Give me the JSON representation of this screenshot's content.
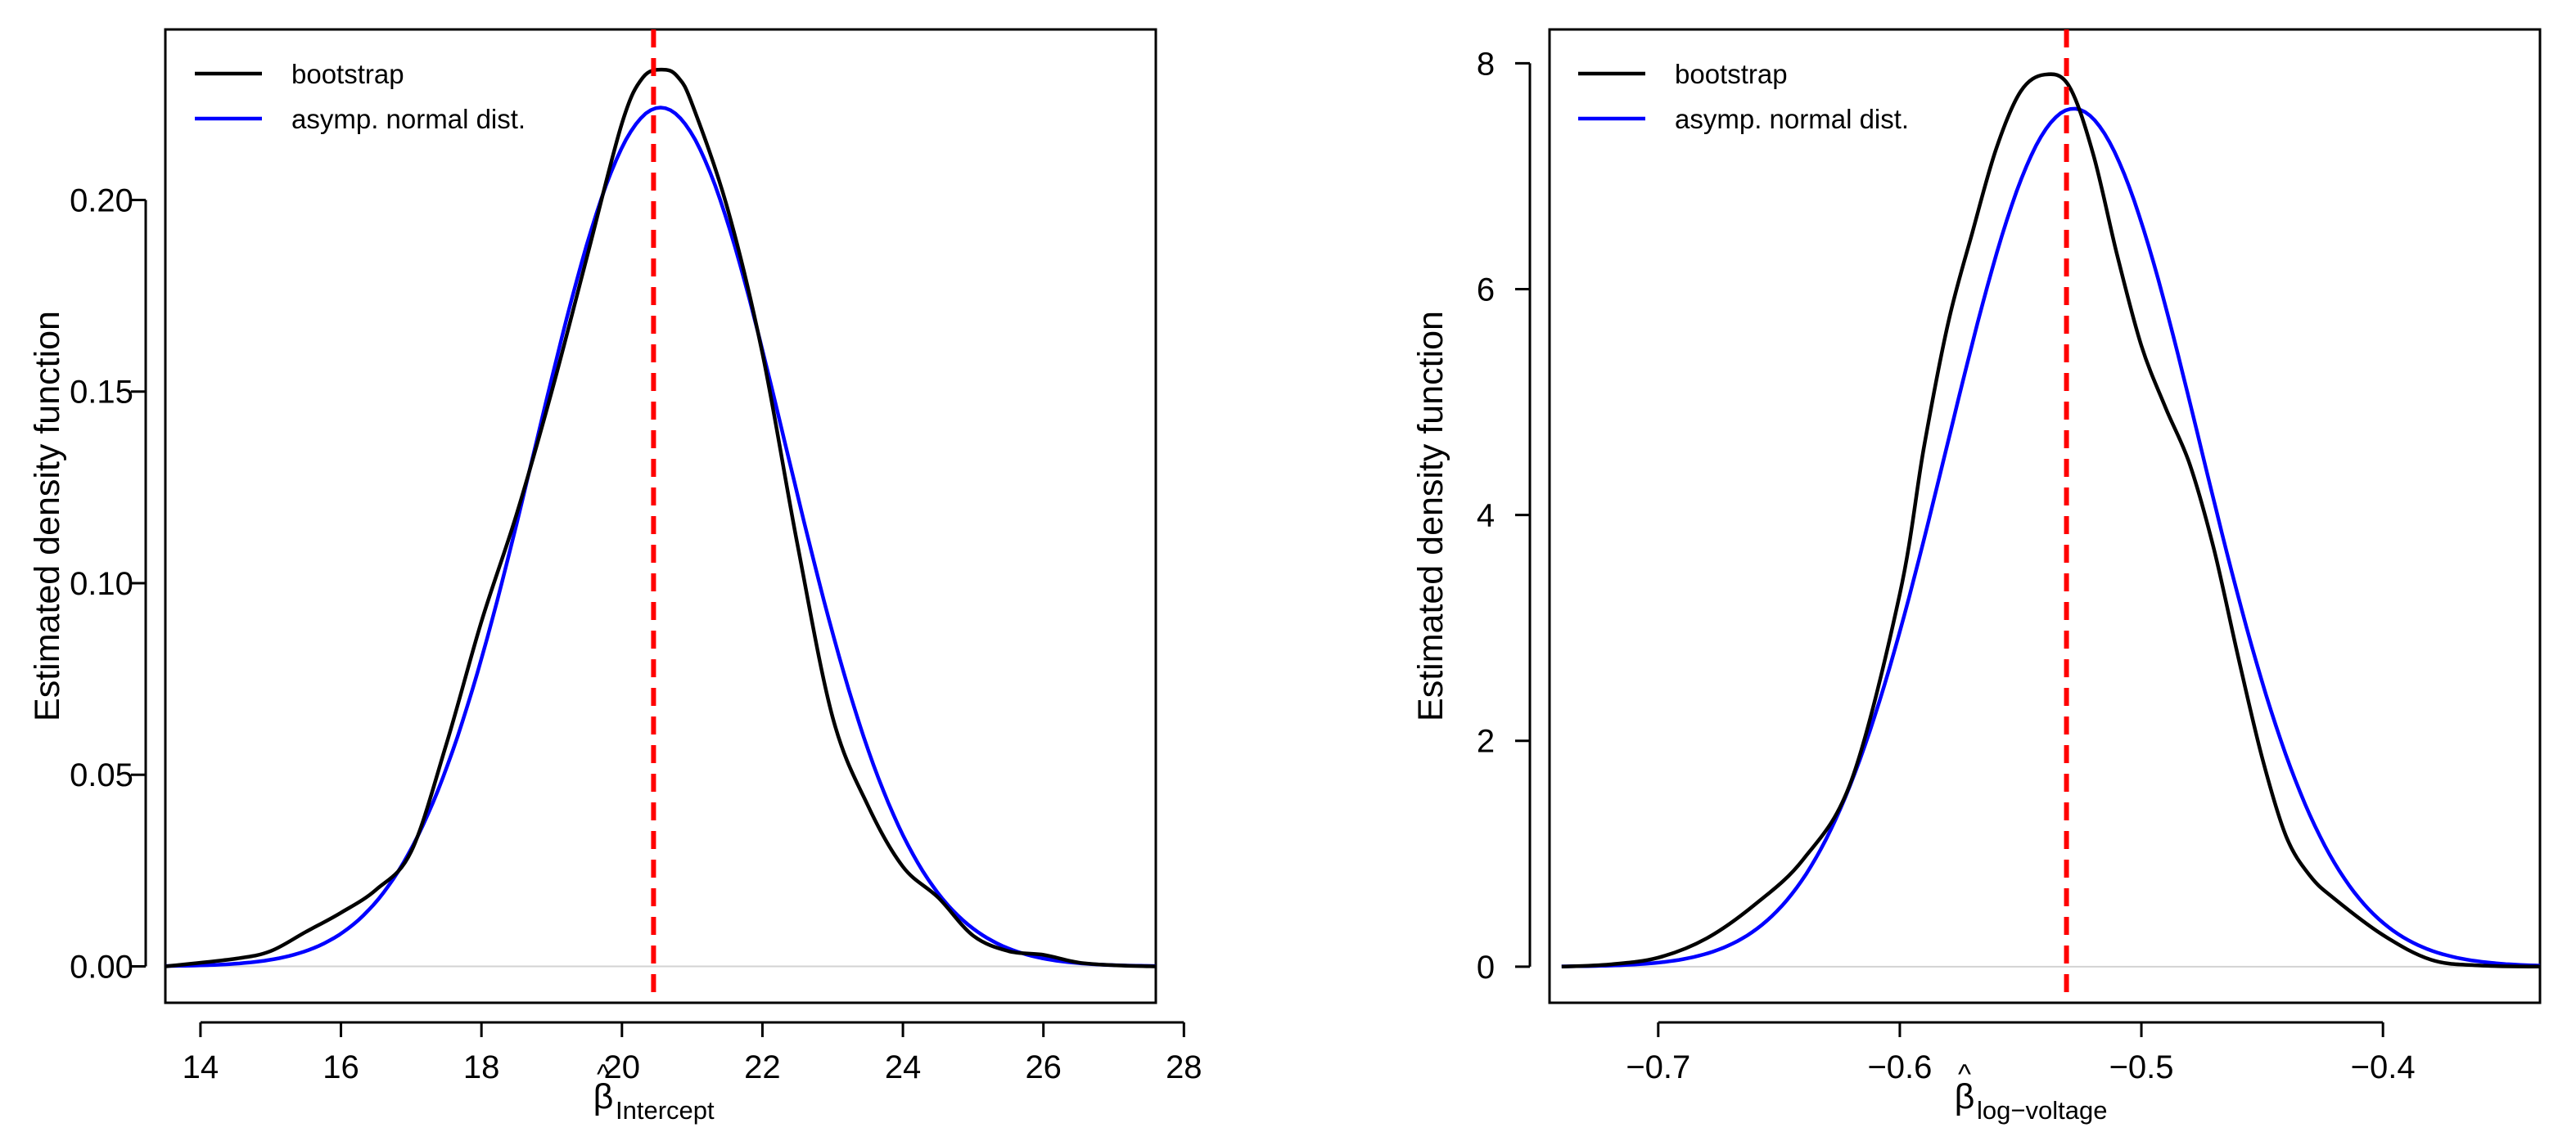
{
  "colors": {
    "bootstrap": "#000000",
    "normal": "#0000ff",
    "vline": "#ff0000",
    "zero_line": "#d3d3d3",
    "axis": "#000000"
  },
  "chart_data": [
    {
      "type": "line",
      "title": "",
      "ylabel": "Estimated density function",
      "xlabel": {
        "symbol": "β",
        "hat": "^",
        "subscript": "Intercept"
      },
      "xlim": [
        13.5,
        27.6
      ],
      "ylim": [
        -0.0095,
        0.2445
      ],
      "xticks": [
        14,
        16,
        18,
        20,
        22,
        24,
        26,
        28
      ],
      "xtick_labels": [
        "14",
        "16",
        "18",
        "20",
        "22",
        "24",
        "26",
        "28"
      ],
      "yticks": [
        0.0,
        0.05,
        0.1,
        0.15,
        0.2
      ],
      "ytick_labels": [
        "0.00",
        "0.05",
        "0.10",
        "0.15",
        "0.20"
      ],
      "vline": 20.45,
      "legend": {
        "position": "top-left",
        "entries": [
          "bootstrap",
          "asymp. normal dist."
        ]
      },
      "series": [
        {
          "name": "bootstrap",
          "x": [
            13.5,
            14.5,
            15.0,
            15.5,
            16.0,
            16.5,
            17.0,
            17.5,
            18.0,
            18.5,
            19.0,
            19.5,
            20.0,
            20.3,
            20.6,
            20.8,
            21.0,
            21.5,
            22.0,
            22.5,
            23.0,
            23.5,
            24.0,
            24.5,
            25.0,
            25.5,
            26.0,
            26.5,
            27.0,
            27.6
          ],
          "y": [
            0.0,
            0.002,
            0.004,
            0.009,
            0.014,
            0.02,
            0.03,
            0.058,
            0.09,
            0.118,
            0.15,
            0.185,
            0.22,
            0.232,
            0.234,
            0.232,
            0.225,
            0.198,
            0.16,
            0.11,
            0.065,
            0.042,
            0.026,
            0.018,
            0.008,
            0.004,
            0.003,
            0.001,
            0.0003,
            0.0
          ]
        },
        {
          "name": "asymp. normal dist.",
          "distribution": "normal",
          "mean": 20.55,
          "sd": 1.78,
          "x_range": [
            13.5,
            27.6
          ]
        }
      ]
    },
    {
      "type": "line",
      "title": "",
      "ylabel": "Estimated density function",
      "xlabel": {
        "symbol": "β",
        "hat": "^",
        "subscript": "log−voltage"
      },
      "xlim": [
        -0.745,
        -0.335
      ],
      "ylim": [
        -0.32,
        8.3
      ],
      "xticks": [
        -0.7,
        -0.6,
        -0.5,
        -0.4
      ],
      "xtick_labels": [
        "−0.7",
        "−0.6",
        "−0.5",
        "−0.4"
      ],
      "yticks": [
        0,
        2,
        4,
        6,
        8
      ],
      "ytick_labels": [
        "0",
        "2",
        "4",
        "6",
        "8"
      ],
      "vline": -0.531,
      "legend": {
        "position": "top-left",
        "entries": [
          "bootstrap",
          "asymp. normal dist."
        ]
      },
      "series": [
        {
          "name": "bootstrap",
          "x": [
            -0.74,
            -0.72,
            -0.7,
            -0.68,
            -0.66,
            -0.64,
            -0.62,
            -0.6,
            -0.59,
            -0.58,
            -0.57,
            -0.56,
            -0.55,
            -0.54,
            -0.53,
            -0.52,
            -0.51,
            -0.5,
            -0.49,
            -0.48,
            -0.47,
            -0.46,
            -0.45,
            -0.44,
            -0.43,
            -0.42,
            -0.4,
            -0.38,
            -0.36,
            -0.335
          ],
          "y": [
            0.0,
            0.02,
            0.08,
            0.25,
            0.55,
            0.95,
            1.65,
            3.3,
            4.6,
            5.7,
            6.5,
            7.25,
            7.75,
            7.9,
            7.8,
            7.2,
            6.3,
            5.5,
            4.95,
            4.45,
            3.7,
            2.75,
            1.85,
            1.15,
            0.8,
            0.6,
            0.28,
            0.06,
            0.01,
            0.0
          ]
        },
        {
          "name": "asymp. normal dist.",
          "distribution": "normal",
          "mean": -0.528,
          "sd": 0.0525,
          "x_range": [
            -0.74,
            -0.335
          ]
        }
      ]
    }
  ]
}
